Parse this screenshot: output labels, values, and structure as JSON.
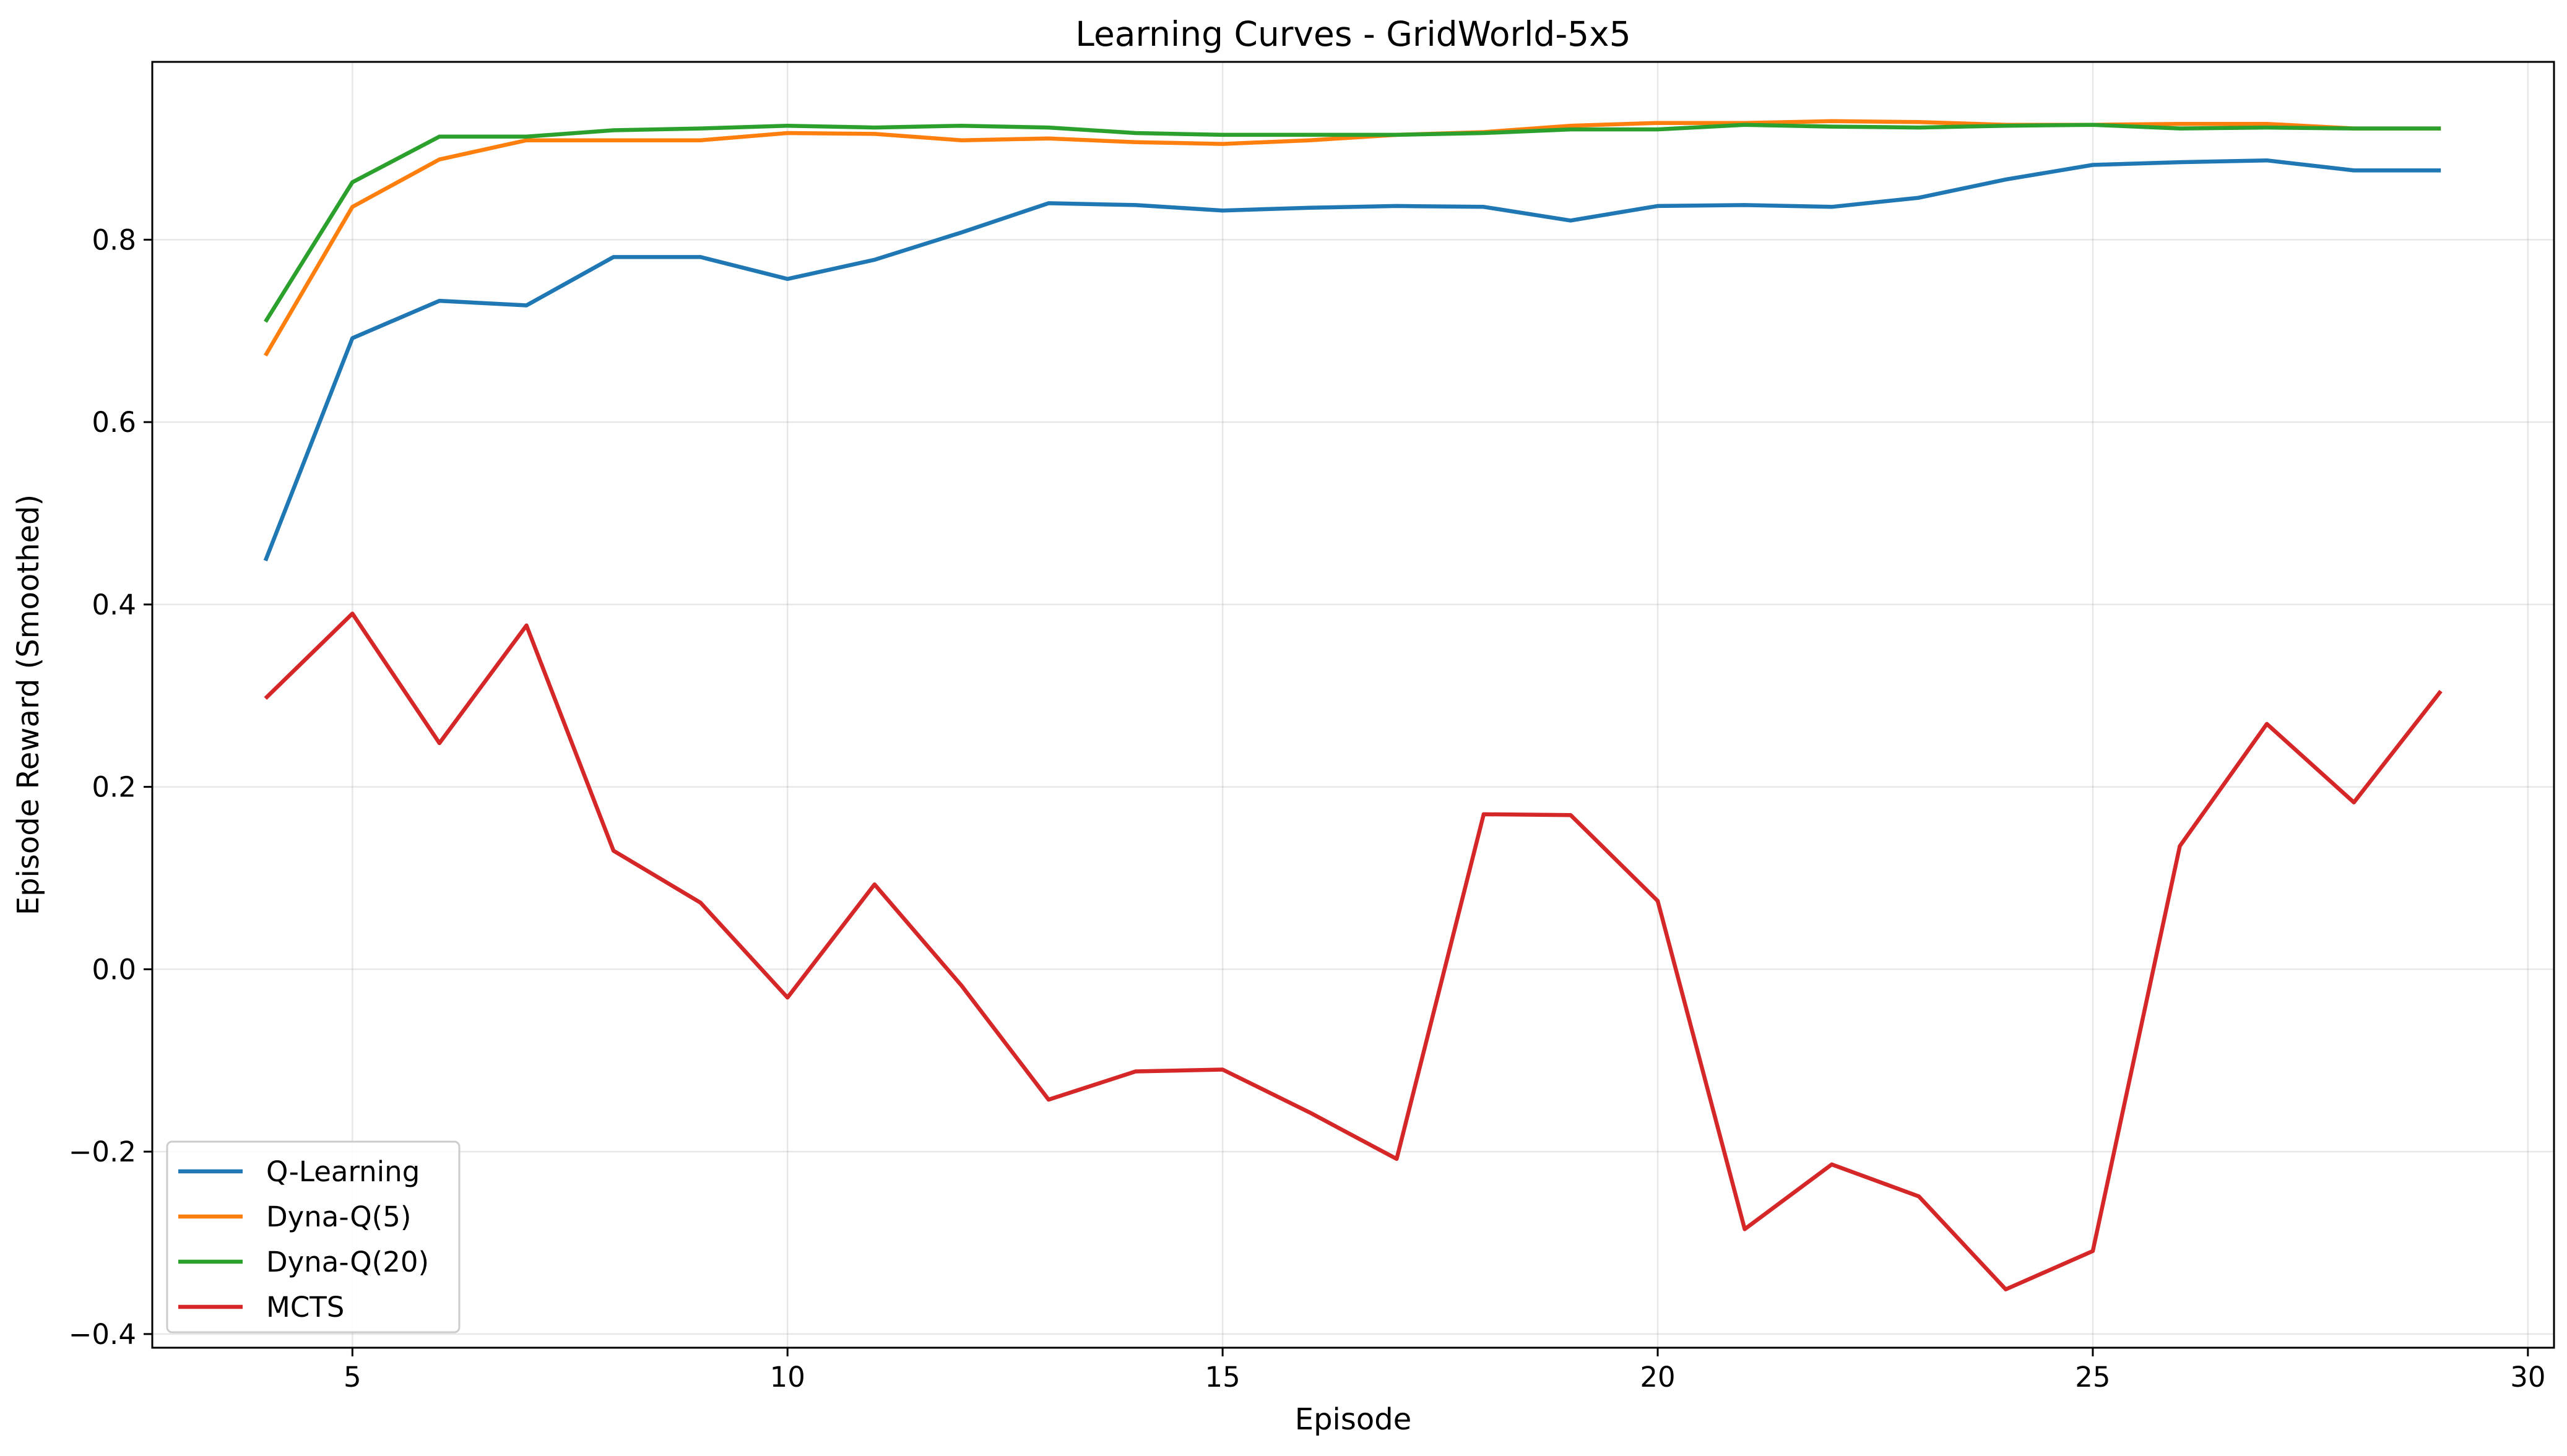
{
  "chart_data": {
    "type": "line",
    "title": "Learning Curves - GridWorld-5x5",
    "xlabel": "Episode",
    "ylabel": "Episode Reward (Smoothed)",
    "xlim": [
      2.7,
      30.3
    ],
    "ylim": [
      -0.415,
      0.995
    ],
    "grid": true,
    "legend_position": "lower-left",
    "x_ticks": [
      5,
      10,
      15,
      20,
      25,
      30
    ],
    "x_tick_labels": [
      "5",
      "10",
      "15",
      "20",
      "25",
      "30"
    ],
    "y_ticks": [
      -0.4,
      -0.2,
      0.0,
      0.2,
      0.4,
      0.6,
      0.8
    ],
    "y_tick_labels": [
      "−0.4",
      "−0.2",
      "0.0",
      "0.2",
      "0.4",
      "0.6",
      "0.8"
    ],
    "x": [
      4,
      5,
      6,
      7,
      8,
      9,
      10,
      11,
      12,
      13,
      14,
      15,
      16,
      17,
      18,
      19,
      20,
      21,
      22,
      23,
      24,
      25,
      26,
      27,
      28,
      29
    ],
    "series": [
      {
        "name": "Q-Learning",
        "color": "#1f77b4",
        "values": [
          0.448,
          0.692,
          0.733,
          0.728,
          0.781,
          0.781,
          0.757,
          0.778,
          0.808,
          0.84,
          0.838,
          0.832,
          0.835,
          0.837,
          0.836,
          0.821,
          0.837,
          0.838,
          0.836,
          0.846,
          0.866,
          0.882,
          0.885,
          0.887,
          0.876,
          0.876
        ]
      },
      {
        "name": "Dyna-Q(5)",
        "color": "#ff7f0e",
        "values": [
          0.673,
          0.836,
          0.888,
          0.909,
          0.909,
          0.909,
          0.917,
          0.916,
          0.909,
          0.911,
          0.907,
          0.905,
          0.909,
          0.915,
          0.918,
          0.925,
          0.928,
          0.928,
          0.93,
          0.929,
          0.926,
          0.926,
          0.927,
          0.927,
          0.922,
          0.922
        ]
      },
      {
        "name": "Dyna-Q(20)",
        "color": "#2ca02c",
        "values": [
          0.71,
          0.863,
          0.913,
          0.913,
          0.92,
          0.922,
          0.925,
          0.923,
          0.925,
          0.923,
          0.917,
          0.915,
          0.915,
          0.915,
          0.917,
          0.921,
          0.921,
          0.926,
          0.924,
          0.923,
          0.925,
          0.926,
          0.922,
          0.923,
          0.922,
          0.922
        ]
      },
      {
        "name": "MCTS",
        "color": "#d62728",
        "values": [
          0.297,
          0.39,
          0.248,
          0.377,
          0.13,
          0.073,
          -0.031,
          0.093,
          -0.018,
          -0.143,
          -0.112,
          -0.11,
          -0.157,
          -0.208,
          0.17,
          0.169,
          0.075,
          -0.285,
          -0.214,
          -0.249,
          -0.351,
          -0.309,
          0.135,
          0.269,
          0.183,
          0.305
        ]
      }
    ]
  }
}
